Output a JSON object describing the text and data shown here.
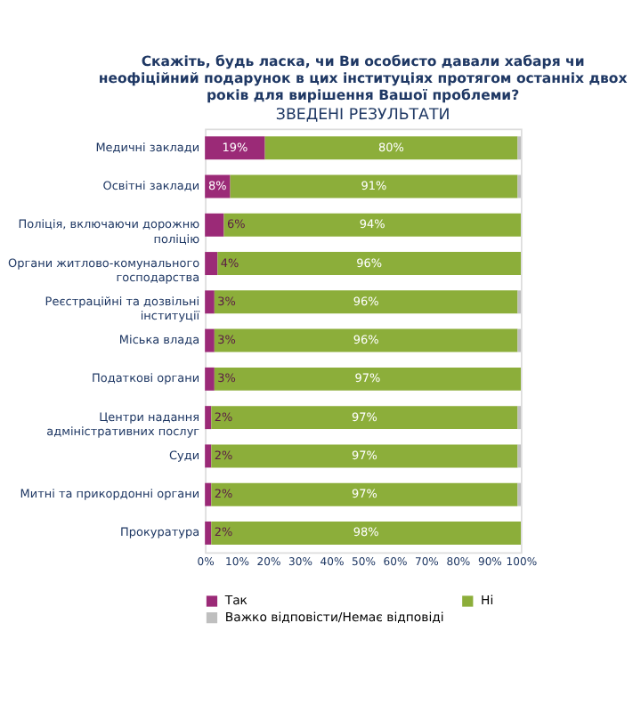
{
  "chart_data": {
    "type": "bar",
    "orientation": "horizontal",
    "stacked": true,
    "title": "Скажіть, будь ласка, чи Ви особисто давали хабаря чи неофіційний подарунок в цих інституціях протягом останніх двох років для вирішення Вашої проблеми?",
    "subtitle": "ЗВЕДЕНІ РЕЗУЛЬТАТИ",
    "categories": [
      "Медичні заклади",
      "Освітні заклади",
      "Поліція, включаючи дорожню поліцію",
      "Органи житлово-комунального господарства",
      "Реєстраційні та дозвільні інституції",
      "Міська влада",
      "Податкові органи",
      "Центри надання адміністративних послуг",
      "Суди",
      "Митні та прикордонні органи",
      "Прокуратура"
    ],
    "series": [
      {
        "name": "Так",
        "color": "#9b2a77",
        "values": [
          19,
          8,
          6,
          4,
          3,
          3,
          3,
          2,
          2,
          2,
          2
        ],
        "value_labels": [
          "19%",
          "8%",
          "6%",
          "4%",
          "3%",
          "3%",
          "3%",
          "2%",
          "2%",
          "2%",
          "2%"
        ]
      },
      {
        "name": "Ні",
        "color": "#8cae3a",
        "values": [
          80,
          91,
          94,
          96,
          96,
          96,
          97,
          97,
          97,
          97,
          98
        ],
        "value_labels": [
          "80%",
          "91%",
          "94%",
          "96%",
          "96%",
          "96%",
          "97%",
          "97%",
          "97%",
          "97%",
          "98%"
        ]
      },
      {
        "name": "Важко відповісти/Немає відповіді",
        "color": "#bfbfbf",
        "values": [
          1,
          1,
          0,
          0,
          1,
          1,
          0,
          1,
          1,
          1,
          0
        ]
      }
    ],
    "xlim": [
      0,
      100
    ],
    "xticks": [
      {
        "value": 0,
        "label": "0%"
      },
      {
        "value": 10,
        "label": "10%"
      },
      {
        "value": 20,
        "label": "20%"
      },
      {
        "value": 30,
        "label": "30%"
      },
      {
        "value": 40,
        "label": "40%"
      },
      {
        "value": 50,
        "label": "50%"
      },
      {
        "value": 60,
        "label": "60%"
      },
      {
        "value": 70,
        "label": "70%"
      },
      {
        "value": 80,
        "label": "80%"
      },
      {
        "value": 90,
        "label": "90%"
      },
      {
        "value": 100,
        "label": "100%"
      }
    ],
    "grid": false,
    "legend": "bottom"
  }
}
